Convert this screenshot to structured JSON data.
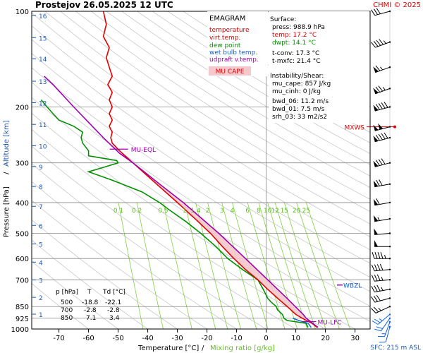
{
  "header": {
    "station": "Prostejov",
    "datetime": "26.05.2025 12 UTC",
    "credit": "CHMI © 2025"
  },
  "legend": {
    "title": "EMAGRAM",
    "items": [
      {
        "label": "temperature",
        "color": "#e00000"
      },
      {
        "label": "virt.temp.",
        "color": "#e00000"
      },
      {
        "label": "dew point",
        "color": "#009000"
      },
      {
        "label": "wet bulb temp.",
        "color": "#1060e0"
      },
      {
        "label": "udpraft v.temp.",
        "color": "#a000b0"
      }
    ],
    "cape_badge": "MU CAPE",
    "cape_color": "#f4c8cc"
  },
  "surface_info": {
    "heading": "Surface:",
    "press": "press: 988.9 hPa",
    "temp": "temp: 17.2 °C",
    "dwpt": "dwpt: 14.1 °C",
    "tconv": "t-conv: 17.3 °C",
    "tmxfc": "t-mxfc: 21.4 °C",
    "instability_heading": "Instability/Shear:",
    "mu_cape": "mu_cape: 857 J/kg",
    "mu_cinh": "mu_cinh: 0 J/kg",
    "bwd_06": "bwd_06: 11.2 m/s",
    "bwd_01": "bwd_01: 7.5 m/s",
    "srh_03": "srh_03: 33 m2/s2"
  },
  "level_table": {
    "headers": [
      "p [hPa]",
      "T",
      "Td [°C]"
    ],
    "rows": [
      [
        "500",
        "-18.8",
        "-22.1"
      ],
      [
        "700",
        "-2.8",
        "-2.8"
      ],
      [
        "850",
        "7.1",
        "3.4"
      ]
    ]
  },
  "footer": {
    "sfc": "SFC: 215 m ASL"
  },
  "annotations": {
    "mu_eql": "MU-EQL",
    "mu_lfc": "MU-LFC",
    "wbzl": "WBZL",
    "mxws": "MXWS"
  },
  "chart_data": {
    "type": "line",
    "title": "Prostejov 26.05.2025 12 UTC",
    "xlabel": "Temperature [°C]",
    "xlabel_sep": "/",
    "xlabel2": "Mixing ratio [g/kg]",
    "ylabel": "Pressure [hPa]",
    "ylabel_sep": "/",
    "ylabel2": "Altitude [km]",
    "ylog": true,
    "xlim": [
      -80,
      40
    ],
    "ylim": [
      1000,
      100
    ],
    "x_ticks": [
      -70,
      -60,
      -50,
      -40,
      -30,
      -20,
      -10,
      0,
      10,
      20,
      30
    ],
    "p_ticks": [
      100,
      200,
      300,
      400,
      500,
      600,
      700,
      850,
      925,
      1000
    ],
    "altitude_ticks": [
      {
        "km": 1,
        "p": 898
      },
      {
        "km": 2,
        "p": 795
      },
      {
        "km": 3,
        "p": 701
      },
      {
        "km": 4,
        "p": 616
      },
      {
        "km": 5,
        "p": 540
      },
      {
        "km": 6,
        "p": 472
      },
      {
        "km": 7,
        "p": 411
      },
      {
        "km": 8,
        "p": 356
      },
      {
        "km": 9,
        "p": 308
      },
      {
        "km": 10,
        "p": 265
      },
      {
        "km": 11,
        "p": 227
      },
      {
        "km": 12,
        "p": 194
      },
      {
        "km": 13,
        "p": 166
      },
      {
        "km": 14,
        "p": 141
      },
      {
        "km": 15,
        "p": 121
      },
      {
        "km": 16,
        "p": 103
      }
    ],
    "mixing_ratio_labels": [
      "0.1",
      "0.2",
      "0.5",
      "1",
      "1.4",
      "2",
      "3",
      "4",
      "6",
      "8",
      "10",
      "12",
      "15",
      "20",
      "25"
    ],
    "mixing_ratio_values": [
      0.1,
      0.2,
      0.5,
      1,
      1.4,
      2,
      3,
      4,
      6,
      8,
      10,
      12,
      15,
      20,
      25
    ],
    "mixing_ratio_label_pressure": 400,
    "series": [
      {
        "key": "temperature",
        "color": "#e00000",
        "points": [
          [
            988.9,
            17.2
          ],
          [
            960,
            15.5
          ],
          [
            925,
            12.2
          ],
          [
            900,
            10.0
          ],
          [
            850,
            7.1
          ],
          [
            800,
            3.8
          ],
          [
            750,
            0.5
          ],
          [
            700,
            -2.8
          ],
          [
            650,
            -7.0
          ],
          [
            600,
            -10.9
          ],
          [
            550,
            -14.8
          ],
          [
            500,
            -18.8
          ],
          [
            450,
            -24.0
          ],
          [
            400,
            -30.0
          ],
          [
            350,
            -37.0
          ],
          [
            300,
            -45.0
          ],
          [
            275,
            -49.5
          ],
          [
            260,
            -52.0
          ],
          [
            250,
            -52.5
          ],
          [
            240,
            -52.0
          ],
          [
            230,
            -53.0
          ],
          [
            220,
            -52.0
          ],
          [
            210,
            -53.0
          ],
          [
            200,
            -52.0
          ],
          [
            190,
            -53.0
          ],
          [
            180,
            -52.0
          ],
          [
            170,
            -53.5
          ],
          [
            160,
            -52.0
          ],
          [
            150,
            -53.0
          ],
          [
            140,
            -54.0
          ],
          [
            130,
            -53.0
          ],
          [
            120,
            -55.0
          ],
          [
            110,
            -54.0
          ],
          [
            100,
            -55.0
          ]
        ]
      },
      {
        "key": "dew_point",
        "color": "#009000",
        "points": [
          [
            988.9,
            14.1
          ],
          [
            960,
            13.5
          ],
          [
            940,
            7.0
          ],
          [
            925,
            6.0
          ],
          [
            900,
            5.5
          ],
          [
            870,
            3.8
          ],
          [
            850,
            3.4
          ],
          [
            820,
            1.5
          ],
          [
            800,
            0.5
          ],
          [
            750,
            -1.0
          ],
          [
            700,
            -2.8
          ],
          [
            650,
            -8.0
          ],
          [
            600,
            -13.0
          ],
          [
            550,
            -17.0
          ],
          [
            500,
            -22.1
          ],
          [
            460,
            -27.0
          ],
          [
            420,
            -33.0
          ],
          [
            400,
            -36.0
          ],
          [
            370,
            -42.0
          ],
          [
            340,
            -52.0
          ],
          [
            320,
            -60.0
          ],
          [
            310,
            -55.0
          ],
          [
            300,
            -50.0
          ],
          [
            295,
            -50.5
          ],
          [
            285,
            -60.0
          ],
          [
            275,
            -60.0
          ],
          [
            260,
            -62.0
          ],
          [
            250,
            -62.5
          ],
          [
            240,
            -62.0
          ],
          [
            230,
            -65.0
          ],
          [
            220,
            -70.0
          ],
          [
            210,
            -72.0
          ],
          [
            200,
            -74.0
          ],
          [
            190,
            -76.0
          ]
        ]
      },
      {
        "key": "parcel",
        "color": "#a000b0",
        "points": [
          [
            988.9,
            17.5
          ],
          [
            925,
            13.5
          ],
          [
            900,
            12.5
          ],
          [
            850,
            9.8
          ],
          [
            800,
            7.0
          ],
          [
            700,
            0.5
          ],
          [
            600,
            -7.0
          ],
          [
            500,
            -16.0
          ],
          [
            400,
            -28.0
          ],
          [
            350,
            -36.0
          ],
          [
            300,
            -45.0
          ],
          [
            280,
            -49.5
          ],
          [
            250,
            -55.0
          ],
          [
            200,
            -65.0
          ],
          [
            170,
            -72.0
          ],
          [
            160,
            -75.0
          ]
        ]
      },
      {
        "key": "wet_bulb",
        "color": "#1060e0",
        "points": [
          [
            988.9,
            15.2
          ],
          [
            960,
            14.2
          ],
          [
            940,
            11.0
          ],
          [
            925,
            9.0
          ]
        ]
      }
    ],
    "levels": {
      "mu_eql_p": 280,
      "mu_lfc_p": 948,
      "wbzl_p": 727,
      "mxws_p": 231
    },
    "winds": [
      {
        "p": 985,
        "dir": 195,
        "spd": 5
      },
      {
        "p": 950,
        "dir": 200,
        "spd": 8
      },
      {
        "p": 925,
        "dir": 215,
        "spd": 10
      },
      {
        "p": 900,
        "dir": 230,
        "spd": 12
      },
      {
        "p": 850,
        "dir": 245,
        "spd": 12
      },
      {
        "p": 800,
        "dir": 255,
        "spd": 15
      },
      {
        "p": 750,
        "dir": 260,
        "spd": 17
      },
      {
        "p": 700,
        "dir": 265,
        "spd": 18
      },
      {
        "p": 650,
        "dir": 265,
        "spd": 20
      },
      {
        "p": 600,
        "dir": 270,
        "spd": 22
      },
      {
        "p": 550,
        "dir": 270,
        "spd": 24
      },
      {
        "p": 500,
        "dir": 265,
        "spd": 25
      },
      {
        "p": 450,
        "dir": 260,
        "spd": 27
      },
      {
        "p": 400,
        "dir": 260,
        "spd": 30
      },
      {
        "p": 350,
        "dir": 260,
        "spd": 34
      },
      {
        "p": 300,
        "dir": 255,
        "spd": 40
      },
      {
        "p": 250,
        "dir": 255,
        "spd": 45
      },
      {
        "p": 231,
        "dir": 255,
        "spd": 50
      },
      {
        "p": 200,
        "dir": 255,
        "spd": 45
      },
      {
        "p": 175,
        "dir": 250,
        "spd": 38
      },
      {
        "p": 150,
        "dir": 250,
        "spd": 32
      },
      {
        "p": 125,
        "dir": 250,
        "spd": 22
      },
      {
        "p": 100,
        "dir": 255,
        "spd": 15
      }
    ],
    "colors": {
      "grid": "#888888",
      "dry_adiabat": "#c8c8c8",
      "mixing_ratio": "#80d040",
      "altitude": "#1c58b8",
      "cape_fill": "#f4c8cc"
    }
  }
}
